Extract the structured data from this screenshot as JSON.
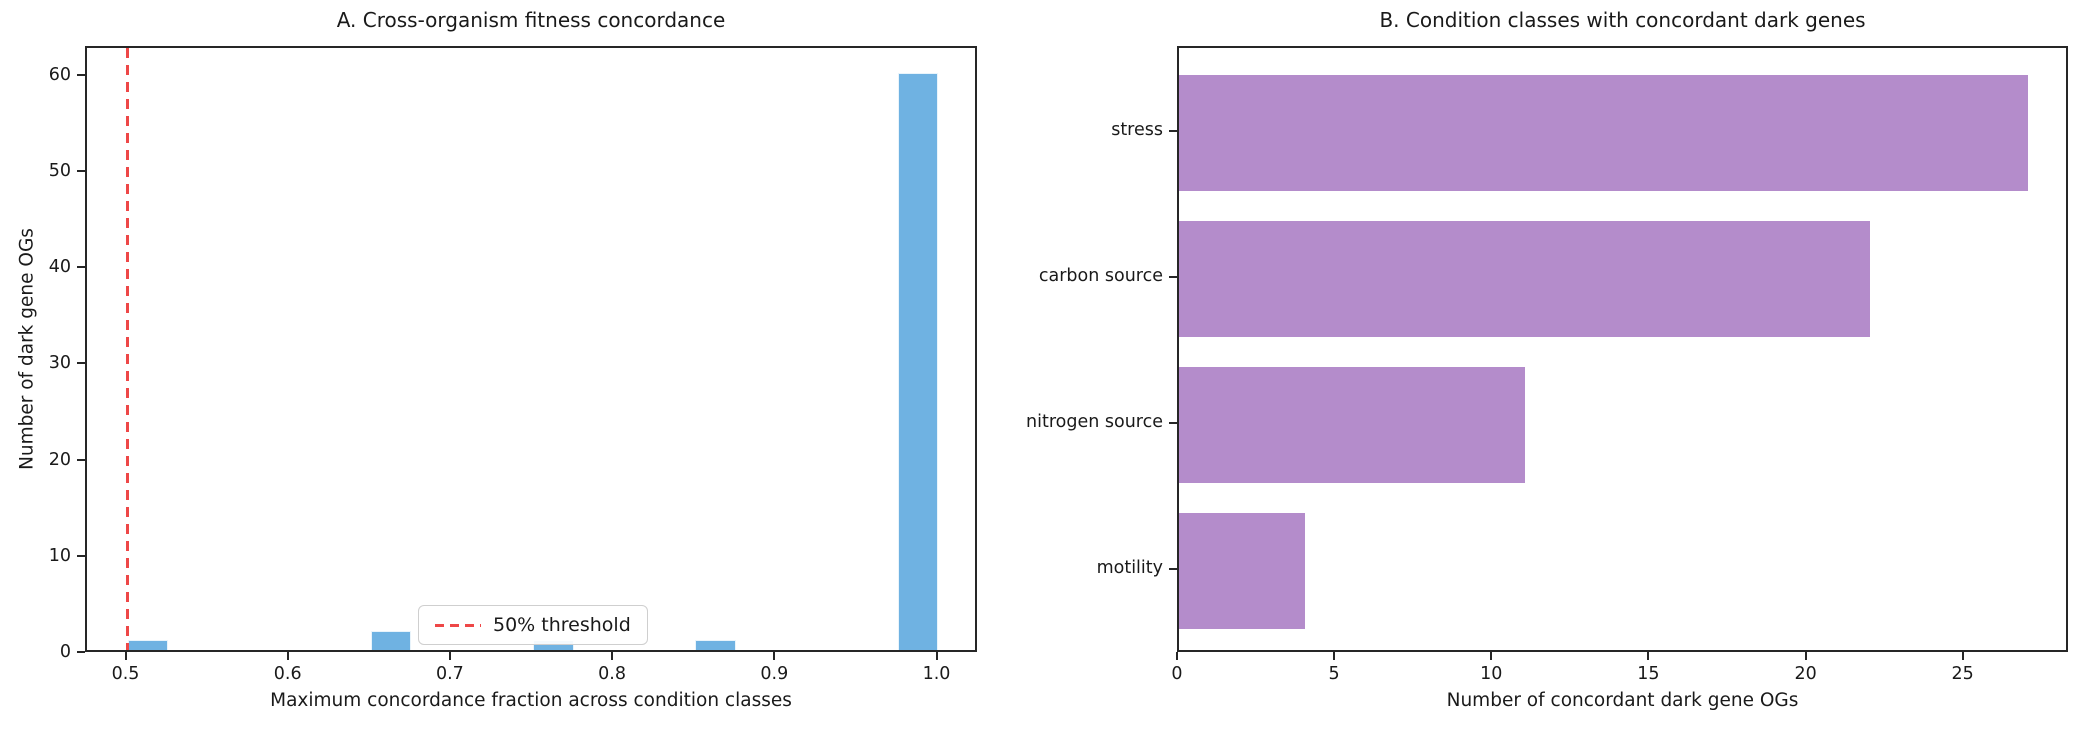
{
  "chart_data": [
    {
      "type": "histogram",
      "title": "A. Cross-organism fitness concordance",
      "xlabel": "Maximum concordance fraction across condition classes",
      "ylabel": "Number of dark gene OGs",
      "bar_color": "#6fb2e2",
      "bins": [
        {
          "start": 0.5,
          "end": 0.525,
          "count": 1
        },
        {
          "start": 0.65,
          "end": 0.675,
          "count": 2
        },
        {
          "start": 0.75,
          "end": 0.775,
          "count": 1
        },
        {
          "start": 0.85,
          "end": 0.875,
          "count": 1
        },
        {
          "start": 0.975,
          "end": 1.0,
          "count": 60
        }
      ],
      "xticks": [
        0.5,
        0.6,
        0.7,
        0.8,
        0.9,
        1.0
      ],
      "yticks": [
        0,
        10,
        20,
        30,
        40,
        50,
        60
      ],
      "xlim": [
        0.475,
        1.025
      ],
      "ylim": [
        0,
        63
      ],
      "threshold_line": {
        "x": 0.5,
        "label": "50% threshold",
        "color": "#ee4747",
        "style": "dashed"
      },
      "legend_position": "lower center",
      "grid": false
    },
    {
      "type": "bar",
      "orientation": "horizontal",
      "title": "B. Condition classes with concordant dark genes",
      "xlabel": "Number of concordant dark gene OGs",
      "ylabel": "",
      "bar_color": "#b48ccb",
      "categories": [
        "stress",
        "carbon source",
        "nitrogen source",
        "motility"
      ],
      "values": [
        27,
        22,
        11,
        4
      ],
      "xticks": [
        0,
        5,
        10,
        15,
        20,
        25
      ],
      "xlim": [
        0,
        28.35
      ],
      "grid": false
    }
  ]
}
